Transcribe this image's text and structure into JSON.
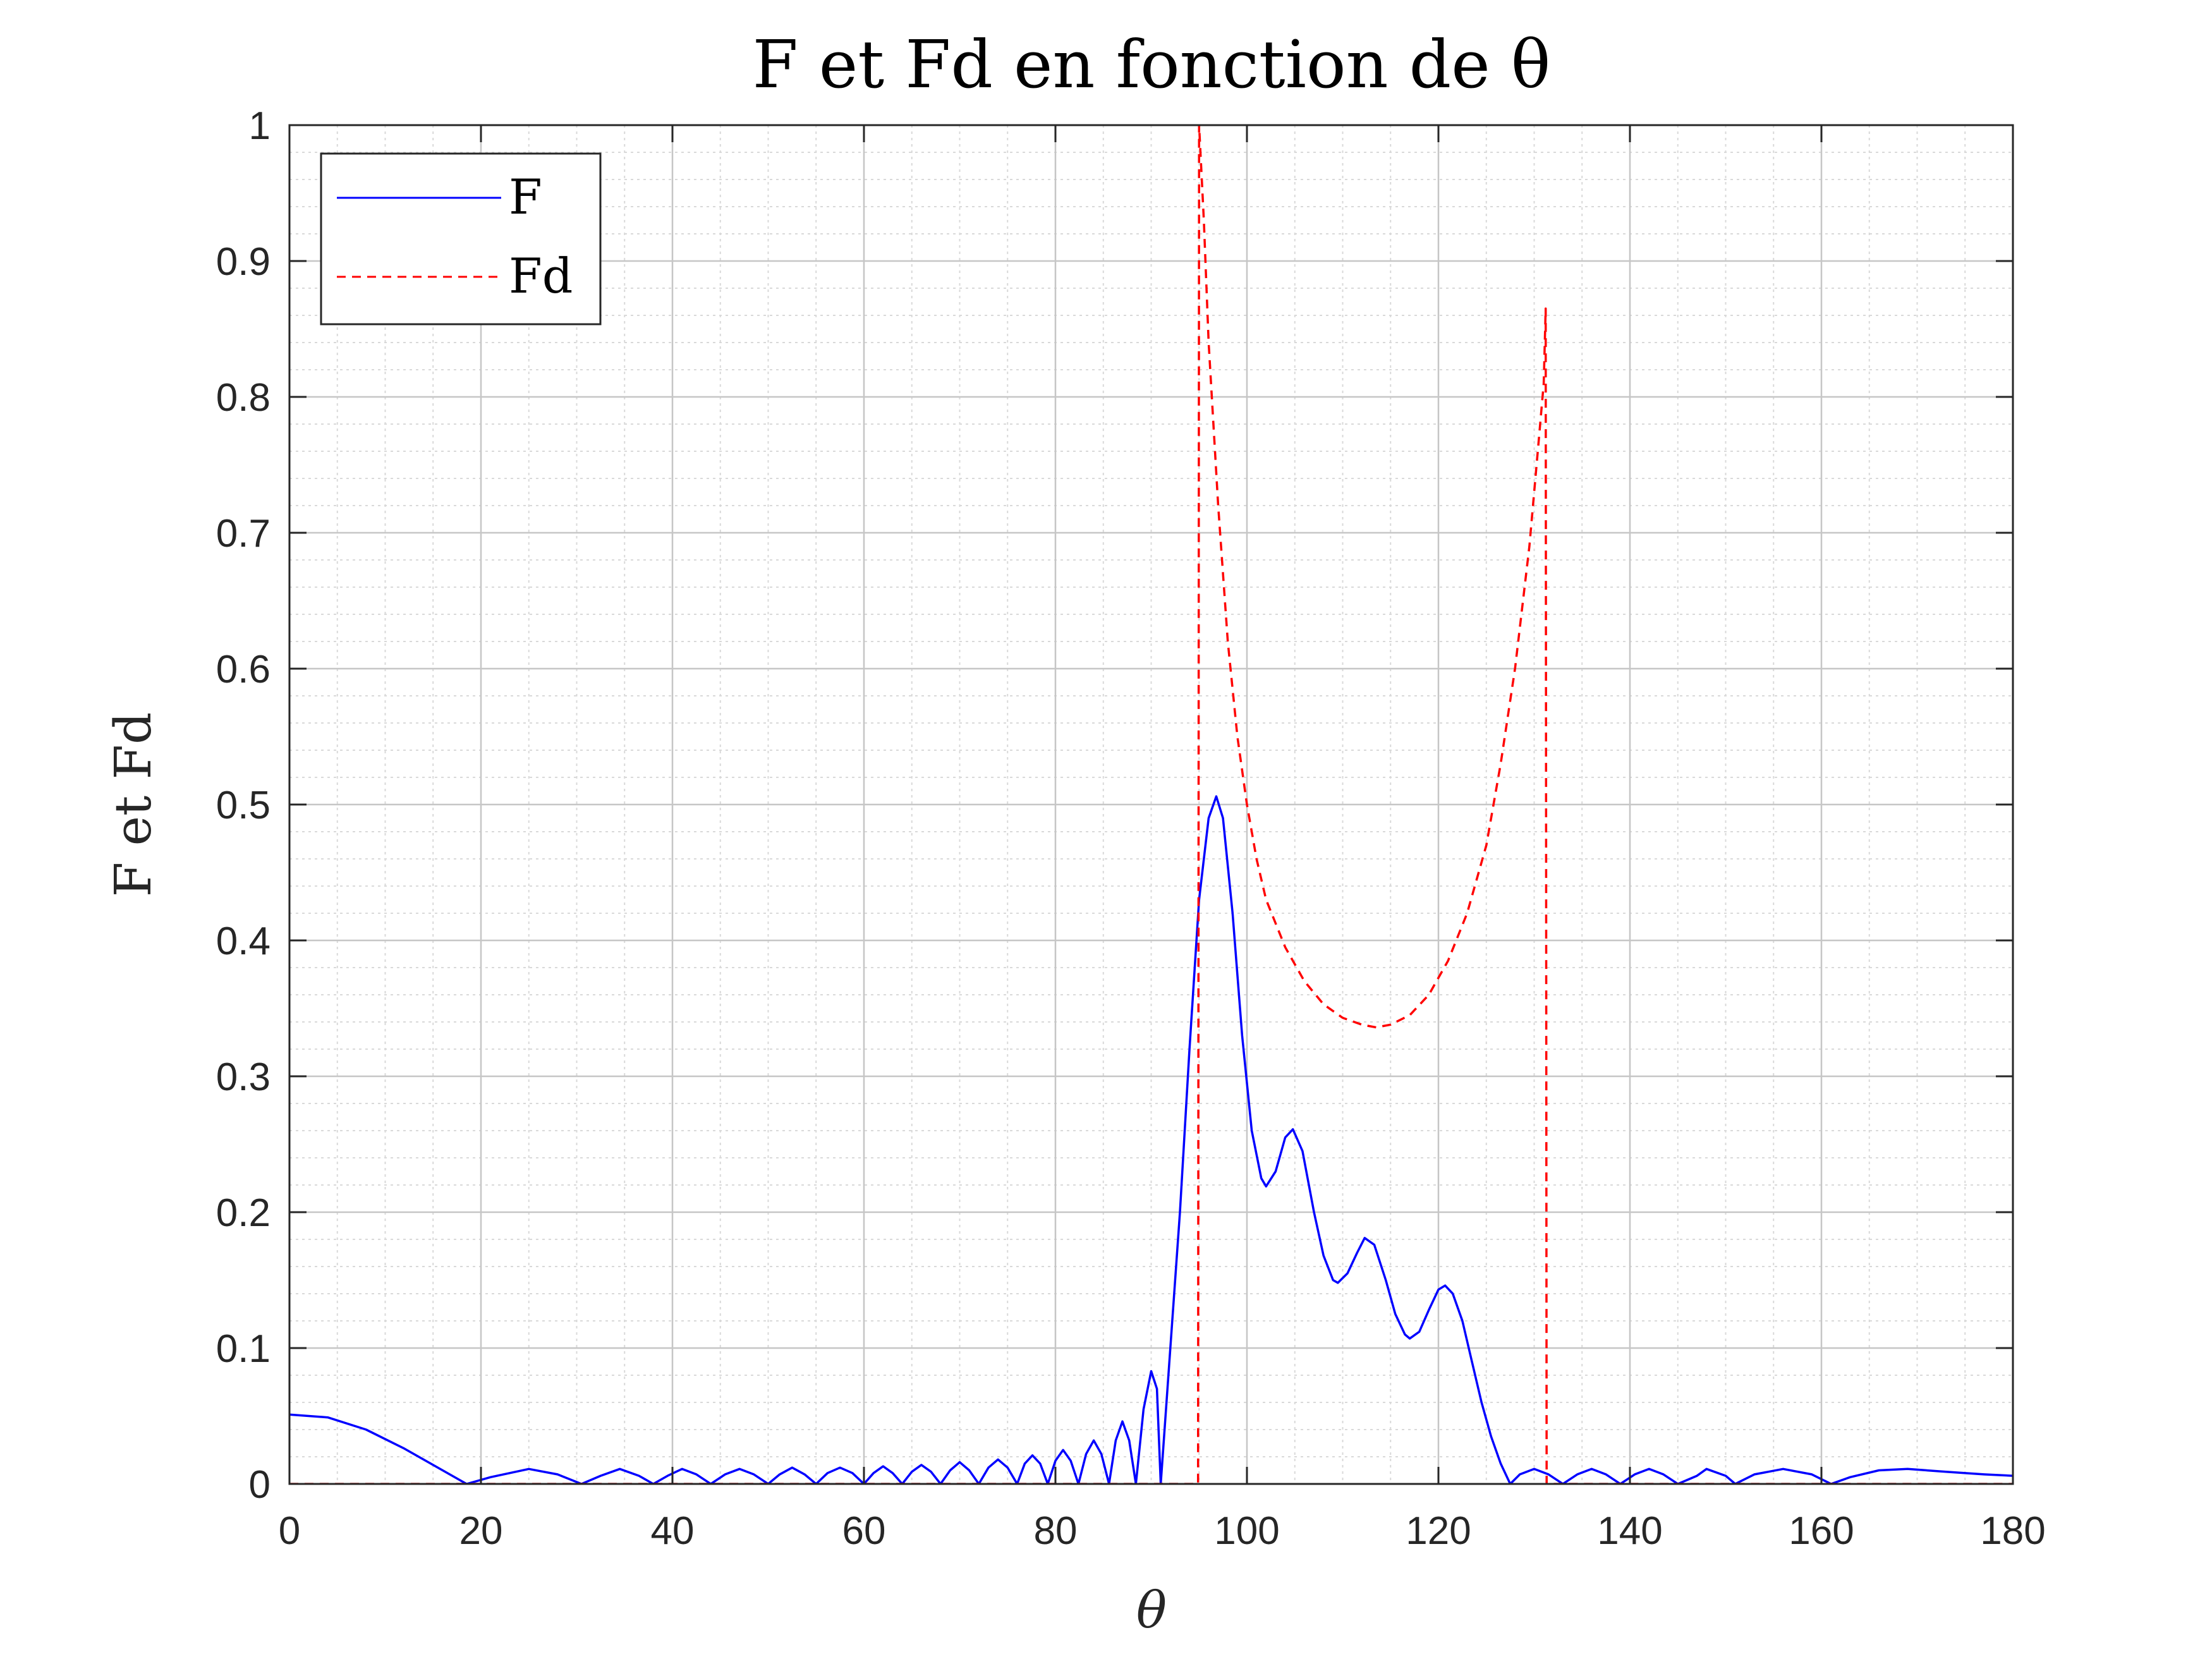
{
  "chart_data": {
    "type": "line",
    "title": "F et Fd en fonction de θ",
    "xlabel": "θ",
    "ylabel": "F et Fd",
    "xlim": [
      0,
      180
    ],
    "ylim": [
      0,
      1
    ],
    "xticks": [
      "0",
      "20",
      "40",
      "60",
      "80",
      "100",
      "120",
      "140",
      "160",
      "180"
    ],
    "yticks": [
      "0",
      "0.1",
      "0.2",
      "0.3",
      "0.4",
      "0.5",
      "0.6",
      "0.7",
      "0.8",
      "0.9",
      "1"
    ],
    "grid": true,
    "minor_grid": true,
    "legend_position": "top-left",
    "series": [
      {
        "name": "F",
        "color": "#0000ff",
        "style": "solid",
        "points": [
          [
            0,
            0.051
          ],
          [
            4,
            0.049
          ],
          [
            8,
            0.04
          ],
          [
            12,
            0.026
          ],
          [
            16,
            0.01
          ],
          [
            18.5,
            0.0
          ],
          [
            21,
            0.005
          ],
          [
            25,
            0.011
          ],
          [
            28,
            0.007
          ],
          [
            30.5,
            0.0
          ],
          [
            32.5,
            0.006
          ],
          [
            34.5,
            0.011
          ],
          [
            36.5,
            0.006
          ],
          [
            38,
            0.0
          ],
          [
            39.5,
            0.006
          ],
          [
            41,
            0.011
          ],
          [
            42.5,
            0.007
          ],
          [
            44,
            0.0
          ],
          [
            45.5,
            0.007
          ],
          [
            47,
            0.011
          ],
          [
            48.5,
            0.007
          ],
          [
            50,
            0.0
          ],
          [
            51.2,
            0.007
          ],
          [
            52.5,
            0.012
          ],
          [
            53.8,
            0.007
          ],
          [
            55,
            0.0
          ],
          [
            56.2,
            0.008
          ],
          [
            57.5,
            0.012
          ],
          [
            58.8,
            0.008
          ],
          [
            60,
            0.0
          ],
          [
            61,
            0.008
          ],
          [
            62,
            0.013
          ],
          [
            63,
            0.008
          ],
          [
            64,
            0.0
          ],
          [
            65,
            0.009
          ],
          [
            66,
            0.014
          ],
          [
            67,
            0.009
          ],
          [
            68,
            0.0
          ],
          [
            69,
            0.01
          ],
          [
            70,
            0.016
          ],
          [
            71,
            0.01
          ],
          [
            72,
            0.0
          ],
          [
            73,
            0.012
          ],
          [
            74,
            0.018
          ],
          [
            75,
            0.012
          ],
          [
            76,
            0.0
          ],
          [
            76.8,
            0.015
          ],
          [
            77.6,
            0.021
          ],
          [
            78.4,
            0.015
          ],
          [
            79.2,
            0.0
          ],
          [
            80,
            0.017
          ],
          [
            80.8,
            0.025
          ],
          [
            81.6,
            0.017
          ],
          [
            82.4,
            0.0
          ],
          [
            83.2,
            0.022
          ],
          [
            84,
            0.032
          ],
          [
            84.8,
            0.022
          ],
          [
            85.6,
            0.0
          ],
          [
            86.3,
            0.032
          ],
          [
            87,
            0.046
          ],
          [
            87.7,
            0.032
          ],
          [
            88.4,
            0.0
          ],
          [
            89.2,
            0.055
          ],
          [
            90,
            0.083
          ],
          [
            90.6,
            0.07
          ],
          [
            91,
            0.0
          ],
          [
            93,
            0.2
          ],
          [
            94,
            0.32
          ],
          [
            95,
            0.43
          ],
          [
            96,
            0.49
          ],
          [
            96.8,
            0.506
          ],
          [
            97.5,
            0.49
          ],
          [
            98.5,
            0.42
          ],
          [
            99.5,
            0.33
          ],
          [
            100.5,
            0.26
          ],
          [
            101.5,
            0.225
          ],
          [
            102,
            0.219
          ],
          [
            103,
            0.23
          ],
          [
            104,
            0.255
          ],
          [
            104.8,
            0.261
          ],
          [
            105.8,
            0.245
          ],
          [
            107,
            0.2
          ],
          [
            108,
            0.168
          ],
          [
            109,
            0.15
          ],
          [
            109.5,
            0.148
          ],
          [
            110.5,
            0.155
          ],
          [
            111.5,
            0.17
          ],
          [
            112.3,
            0.181
          ],
          [
            113.3,
            0.176
          ],
          [
            114.5,
            0.15
          ],
          [
            115.5,
            0.125
          ],
          [
            116.5,
            0.11
          ],
          [
            117,
            0.107
          ],
          [
            118,
            0.112
          ],
          [
            119,
            0.128
          ],
          [
            120,
            0.143
          ],
          [
            120.7,
            0.146
          ],
          [
            121.5,
            0.14
          ],
          [
            122.5,
            0.12
          ],
          [
            123.5,
            0.09
          ],
          [
            124.5,
            0.06
          ],
          [
            125.5,
            0.035
          ],
          [
            126.5,
            0.015
          ],
          [
            127.5,
            0.0
          ],
          [
            128.5,
            0.007
          ],
          [
            130,
            0.011
          ],
          [
            131.5,
            0.007
          ],
          [
            133,
            0.0
          ],
          [
            134.5,
            0.007
          ],
          [
            136,
            0.011
          ],
          [
            137.5,
            0.007
          ],
          [
            139,
            0.0
          ],
          [
            140.5,
            0.007
          ],
          [
            142,
            0.011
          ],
          [
            143.5,
            0.007
          ],
          [
            145,
            0.0
          ],
          [
            147,
            0.006
          ],
          [
            148,
            0.011
          ],
          [
            150,
            0.006
          ],
          [
            151,
            0.0
          ],
          [
            153,
            0.007
          ],
          [
            156,
            0.011
          ],
          [
            159,
            0.007
          ],
          [
            161,
            0.0
          ],
          [
            163,
            0.005
          ],
          [
            166,
            0.01
          ],
          [
            169,
            0.011
          ],
          [
            173,
            0.009
          ],
          [
            177,
            0.007
          ],
          [
            180,
            0.006
          ]
        ]
      },
      {
        "name": "Fd",
        "color": "#ff0000",
        "style": "dashed",
        "points": [
          [
            0,
            0.0
          ],
          [
            94.9,
            0.0
          ],
          [
            95,
            1.0
          ],
          [
            95.5,
            0.93
          ],
          [
            96,
            0.84
          ],
          [
            97,
            0.72
          ],
          [
            98,
            0.62
          ],
          [
            99,
            0.55
          ],
          [
            100,
            0.5
          ],
          [
            101,
            0.46
          ],
          [
            102,
            0.43
          ],
          [
            104,
            0.395
          ],
          [
            106,
            0.37
          ],
          [
            108,
            0.353
          ],
          [
            110,
            0.343
          ],
          [
            112,
            0.338
          ],
          [
            113.5,
            0.336
          ],
          [
            115,
            0.338
          ],
          [
            117,
            0.345
          ],
          [
            119,
            0.36
          ],
          [
            121,
            0.385
          ],
          [
            123,
            0.42
          ],
          [
            125,
            0.47
          ],
          [
            126.5,
            0.53
          ],
          [
            128,
            0.6
          ],
          [
            129.5,
            0.69
          ],
          [
            130.5,
            0.77
          ],
          [
            131,
            0.81
          ],
          [
            131.2,
            0.865
          ],
          [
            131.3,
            0.0
          ],
          [
            180,
            0.0
          ]
        ]
      }
    ]
  }
}
